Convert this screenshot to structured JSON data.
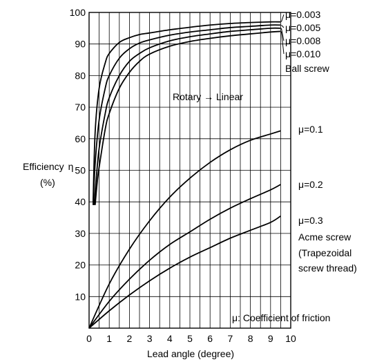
{
  "chart_data": {
    "type": "line",
    "title": "",
    "xlabel": "Lead angle (degree)",
    "ylabel_line1": "Efficiency",
    "ylabel_symbol": "η",
    "ylabel_line2": "(%)",
    "xlim": [
      0,
      10
    ],
    "ylim": [
      0,
      100
    ],
    "grid": true,
    "xticks": [
      "0",
      "1",
      "2",
      "3",
      "4",
      "5",
      "6",
      "7",
      "8",
      "9",
      "10"
    ],
    "yticks": [
      "10",
      "20",
      "30",
      "40",
      "50",
      "60",
      "70",
      "80",
      "90",
      "100"
    ],
    "annotations": {
      "direction": "Rotary → Linear",
      "ball_screw": "Ball screw",
      "acme_screw": "Acme screw",
      "trapezoidal_1": "(Trapezoidal",
      "trapezoidal_2": "screw thread)",
      "friction_note": "μ: Coefficient of friction"
    },
    "series": [
      {
        "name": "μ=0.003",
        "x": [
          0.2,
          0.3,
          0.5,
          0.8,
          1.0,
          1.5,
          2.0,
          2.5,
          3.0,
          4.0,
          5.0,
          6.0,
          7.0,
          8.0,
          9.0,
          9.5
        ],
        "y": [
          40,
          62,
          76,
          84,
          87,
          90.5,
          92,
          93,
          93.5,
          94.5,
          95.3,
          96,
          96.5,
          96.8,
          97,
          97
        ]
      },
      {
        "name": "μ=0.005",
        "x": [
          0.2,
          0.3,
          0.5,
          0.8,
          1.0,
          1.5,
          2.0,
          2.5,
          3.0,
          4.0,
          5.0,
          6.0,
          7.0,
          8.0,
          9.0,
          9.5
        ],
        "y": [
          39,
          52,
          66,
          76,
          80,
          85.5,
          88.5,
          90.3,
          91.3,
          92.8,
          93.8,
          94.5,
          95.2,
          95.6,
          96,
          96
        ]
      },
      {
        "name": "μ=0.008",
        "x": [
          0.25,
          0.35,
          0.5,
          0.8,
          1.0,
          1.5,
          2.0,
          2.5,
          3.0,
          4.0,
          5.0,
          6.0,
          7.0,
          8.0,
          9.0,
          9.5
        ],
        "y": [
          39,
          47,
          57,
          68,
          73,
          80,
          84.5,
          87,
          88.8,
          91,
          92.3,
          93.2,
          94,
          94.5,
          95,
          95
        ]
      },
      {
        "name": "μ=0.010",
        "x": [
          0.3,
          0.4,
          0.5,
          0.8,
          1.0,
          1.5,
          2.0,
          2.5,
          3.0,
          4.0,
          5.0,
          6.0,
          7.0,
          8.0,
          9.0,
          9.5
        ],
        "y": [
          39,
          46,
          51,
          63,
          68,
          76,
          81,
          84.5,
          86.8,
          89.3,
          90.8,
          91.8,
          92.6,
          93.2,
          93.8,
          94
        ]
      },
      {
        "name": "μ=0.1",
        "x": [
          0,
          1,
          2,
          3,
          4,
          5,
          6,
          7,
          8,
          9,
          9.5
        ],
        "y": [
          0,
          14,
          25,
          34,
          41.5,
          47.5,
          52.5,
          56.5,
          59.5,
          61.5,
          62.5
        ]
      },
      {
        "name": "μ=0.2",
        "x": [
          0,
          1,
          2,
          3,
          4,
          5,
          6,
          7,
          8,
          9,
          9.5
        ],
        "y": [
          0,
          8.5,
          15.5,
          21.5,
          26.5,
          30.5,
          34.5,
          38,
          41,
          43.8,
          45.5
        ]
      },
      {
        "name": "μ=0.3",
        "x": [
          0,
          1,
          2,
          3,
          4,
          5,
          6,
          7,
          8,
          9,
          9.5
        ],
        "y": [
          0,
          5.5,
          10.5,
          15,
          19,
          22.5,
          25.5,
          28.5,
          31,
          33.5,
          35.5
        ]
      }
    ]
  }
}
